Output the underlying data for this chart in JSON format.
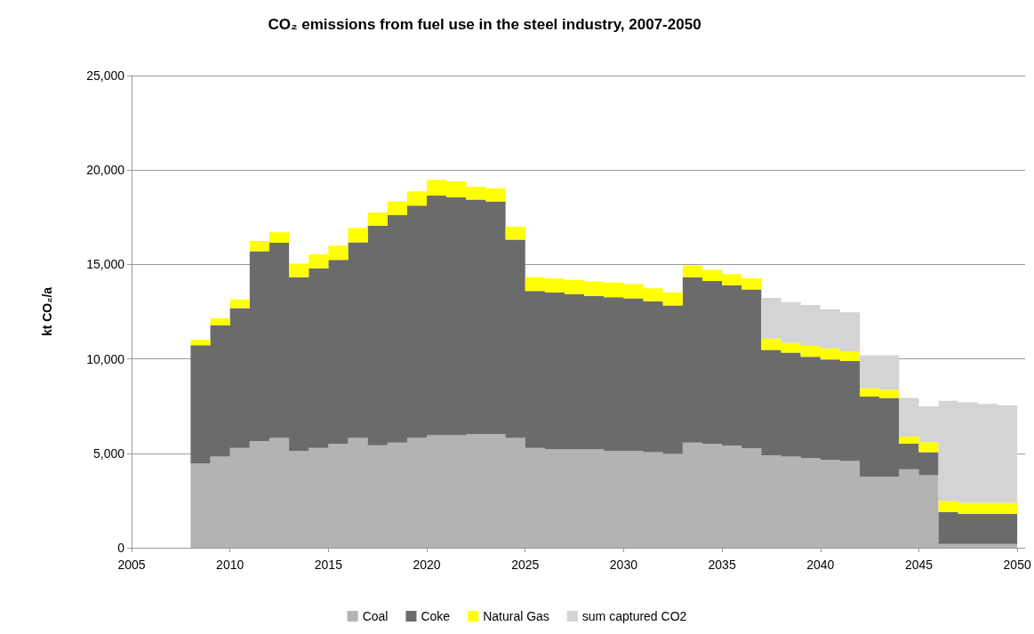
{
  "chart_data": {
    "type": "area",
    "title": "CO₂ emissions from fuel use in the steel industry, 2007-2050",
    "ylabel": "kt CO₂/a",
    "x": [
      2008,
      2009,
      2010,
      2011,
      2012,
      2013,
      2014,
      2015,
      2016,
      2017,
      2018,
      2019,
      2020,
      2021,
      2022,
      2023,
      2024,
      2025,
      2026,
      2027,
      2028,
      2029,
      2030,
      2031,
      2032,
      2033,
      2034,
      2035,
      2036,
      2037,
      2038,
      2039,
      2040,
      2041,
      2042,
      2043,
      2044,
      2045,
      2046,
      2047,
      2048,
      2049,
      2050
    ],
    "stacked": true,
    "series": [
      {
        "name": "Coal",
        "color": "#b3b3b3",
        "values": [
          4460,
          4820,
          5290,
          5650,
          5810,
          5120,
          5290,
          5510,
          5810,
          5430,
          5570,
          5810,
          5950,
          5950,
          6020,
          6020,
          5810,
          5290,
          5210,
          5210,
          5210,
          5130,
          5130,
          5060,
          4980,
          5570,
          5510,
          5410,
          5270,
          4900,
          4820,
          4740,
          4660,
          4590,
          3770,
          3770,
          4150,
          3840,
          200,
          200,
          200,
          200,
          200
        ]
      },
      {
        "name": "Coke",
        "color": "#6b6b6b",
        "values": [
          6260,
          6950,
          7400,
          10050,
          10340,
          9210,
          9500,
          9730,
          10360,
          11630,
          12040,
          12310,
          12690,
          12610,
          12410,
          12320,
          10500,
          8310,
          8300,
          8220,
          8120,
          8140,
          8080,
          7990,
          7850,
          8760,
          8610,
          8490,
          8410,
          5580,
          5510,
          5370,
          5310,
          5300,
          4230,
          4160,
          1360,
          1220,
          1680,
          1600,
          1600,
          1600,
          1600
        ]
      },
      {
        "name": "Natural Gas",
        "color": "#ffff00",
        "values": [
          300,
          380,
          460,
          540,
          550,
          710,
          750,
          760,
          750,
          690,
          730,
          750,
          840,
          840,
          680,
          690,
          690,
          730,
          740,
          750,
          770,
          770,
          750,
          690,
          680,
          620,
          590,
          590,
          590,
          600,
          520,
          590,
          590,
          520,
          450,
          440,
          370,
          530,
          590,
          580,
          580,
          580,
          580
        ]
      },
      {
        "name": "sum captured CO2",
        "color": "#d4d4d4",
        "values": [
          null,
          null,
          null,
          null,
          null,
          null,
          null,
          null,
          null,
          null,
          null,
          null,
          null,
          null,
          null,
          null,
          null,
          null,
          null,
          null,
          null,
          null,
          null,
          null,
          null,
          null,
          null,
          null,
          null,
          2150,
          2160,
          2150,
          2070,
          2060,
          1740,
          1820,
          2050,
          1890,
          5310,
          5320,
          5240,
          5160,
          5100
        ]
      }
    ],
    "xlim": [
      2005,
      2050.4
    ],
    "xticks": [
      2005,
      2010,
      2015,
      2020,
      2025,
      2030,
      2035,
      2040,
      2045,
      2050
    ],
    "ylim": [
      0,
      25000
    ],
    "yticks": [
      {
        "value": 0,
        "label": "0"
      },
      {
        "value": 5000,
        "label": "5,000"
      },
      {
        "value": 10000,
        "label": "10,000"
      },
      {
        "value": 15000,
        "label": "15,000"
      },
      {
        "value": 20000,
        "label": "20,000"
      },
      {
        "value": 25000,
        "label": "25,000"
      }
    ],
    "grid": "y",
    "legend": "bottom"
  }
}
